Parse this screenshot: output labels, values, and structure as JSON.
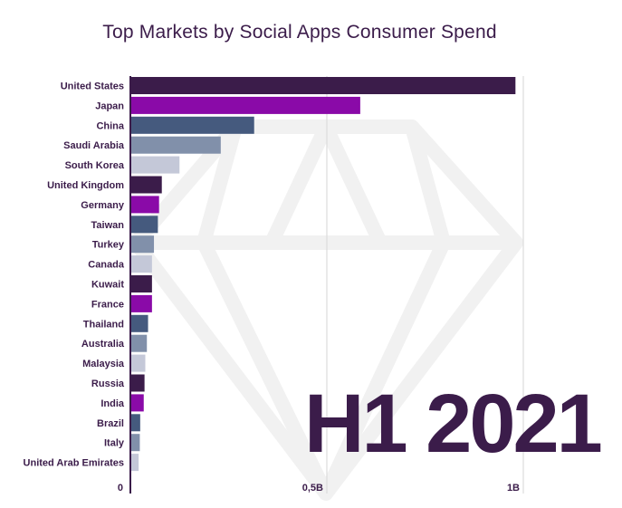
{
  "chart_data": {
    "type": "bar",
    "orientation": "horizontal",
    "title": "Top Markets by Social Apps Consumer Spend",
    "period_label": "H1 2021",
    "xlabel": "",
    "ylabel": "",
    "xlim": [
      0,
      1.03
    ],
    "unit": "B",
    "ticks": [
      {
        "value": 0,
        "label": "0"
      },
      {
        "value": 0.5,
        "label": "0,5B"
      },
      {
        "value": 1,
        "label": "1B"
      }
    ],
    "categories": [
      "United States",
      "Japan",
      "China",
      "Saudi Arabia",
      "South Korea",
      "United Kingdom",
      "Germany",
      "Taiwan",
      "Turkey",
      "Canada",
      "Kuwait",
      "France",
      "Thailand",
      "Australia",
      "Malaysia",
      "Russia",
      "India",
      "Brazil",
      "Italy",
      "United Arab Emirates"
    ],
    "values": [
      0.98,
      0.585,
      0.315,
      0.23,
      0.125,
      0.08,
      0.073,
      0.07,
      0.06,
      0.055,
      0.055,
      0.055,
      0.045,
      0.042,
      0.038,
      0.036,
      0.034,
      0.025,
      0.024,
      0.021
    ],
    "palette": [
      "#3b1c4a",
      "#8a0aa8",
      "#455a7e",
      "#8190aa",
      "#c4c8d8"
    ]
  }
}
